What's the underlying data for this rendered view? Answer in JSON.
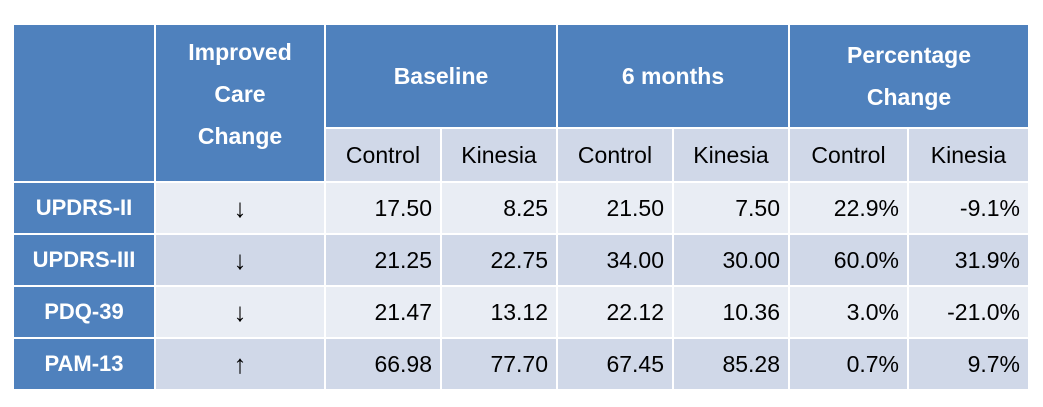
{
  "header": {
    "improved_care_change": "Improved Care Change",
    "baseline": "Baseline",
    "six_months": "6 months",
    "percentage_change": "Percentage Change",
    "sub": [
      "Control",
      "Kinesia",
      "Control",
      "Kinesia",
      "Control",
      "Kinesia"
    ]
  },
  "rows": [
    {
      "label": "UPDRS-II",
      "arrow": "↓",
      "values": [
        "17.50",
        "8.25",
        "21.50",
        "7.50",
        "22.9%",
        "-9.1%"
      ]
    },
    {
      "label": "UPDRS-III",
      "arrow": "↓",
      "values": [
        "21.25",
        "22.75",
        "34.00",
        "30.00",
        "60.0%",
        "31.9%"
      ]
    },
    {
      "label": "PDQ-39",
      "arrow": "↓",
      "values": [
        "21.47",
        "13.12",
        "22.12",
        "10.36",
        "3.0%",
        "-21.0%"
      ]
    },
    {
      "label": "PAM-13",
      "arrow": "↑",
      "values": [
        "66.98",
        "77.70",
        "67.45",
        "85.28",
        "0.7%",
        "9.7%"
      ]
    }
  ],
  "colors": {
    "header_blue": "#4f81bd",
    "row_light": "#e9edf4",
    "row_mid": "#d0d8e8"
  }
}
